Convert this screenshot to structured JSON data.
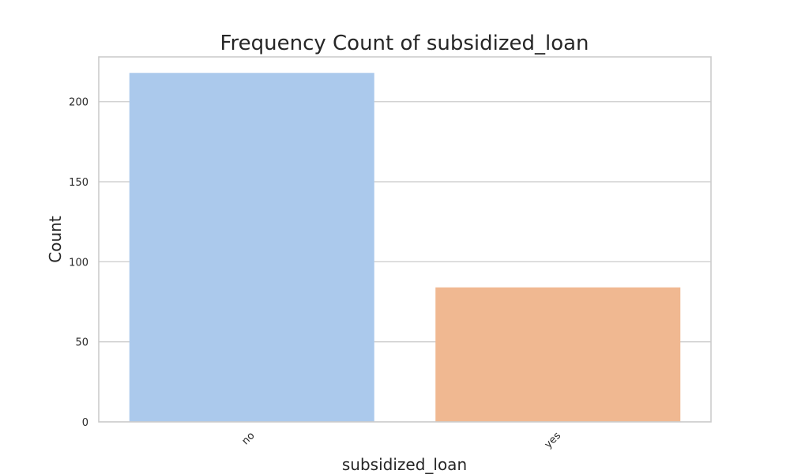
{
  "chart_data": {
    "type": "bar",
    "title": "Frequency Count of subsidized_loan",
    "xlabel": "subsidized_loan",
    "ylabel": "Count",
    "categories": [
      "no",
      "yes"
    ],
    "values": [
      218,
      84
    ],
    "colors": [
      "#abc9ec",
      "#f0b891"
    ],
    "ylim": [
      0,
      228
    ],
    "yticks": [
      0,
      50,
      100,
      150,
      200
    ],
    "grid": true,
    "xtick_rotation": 45
  }
}
